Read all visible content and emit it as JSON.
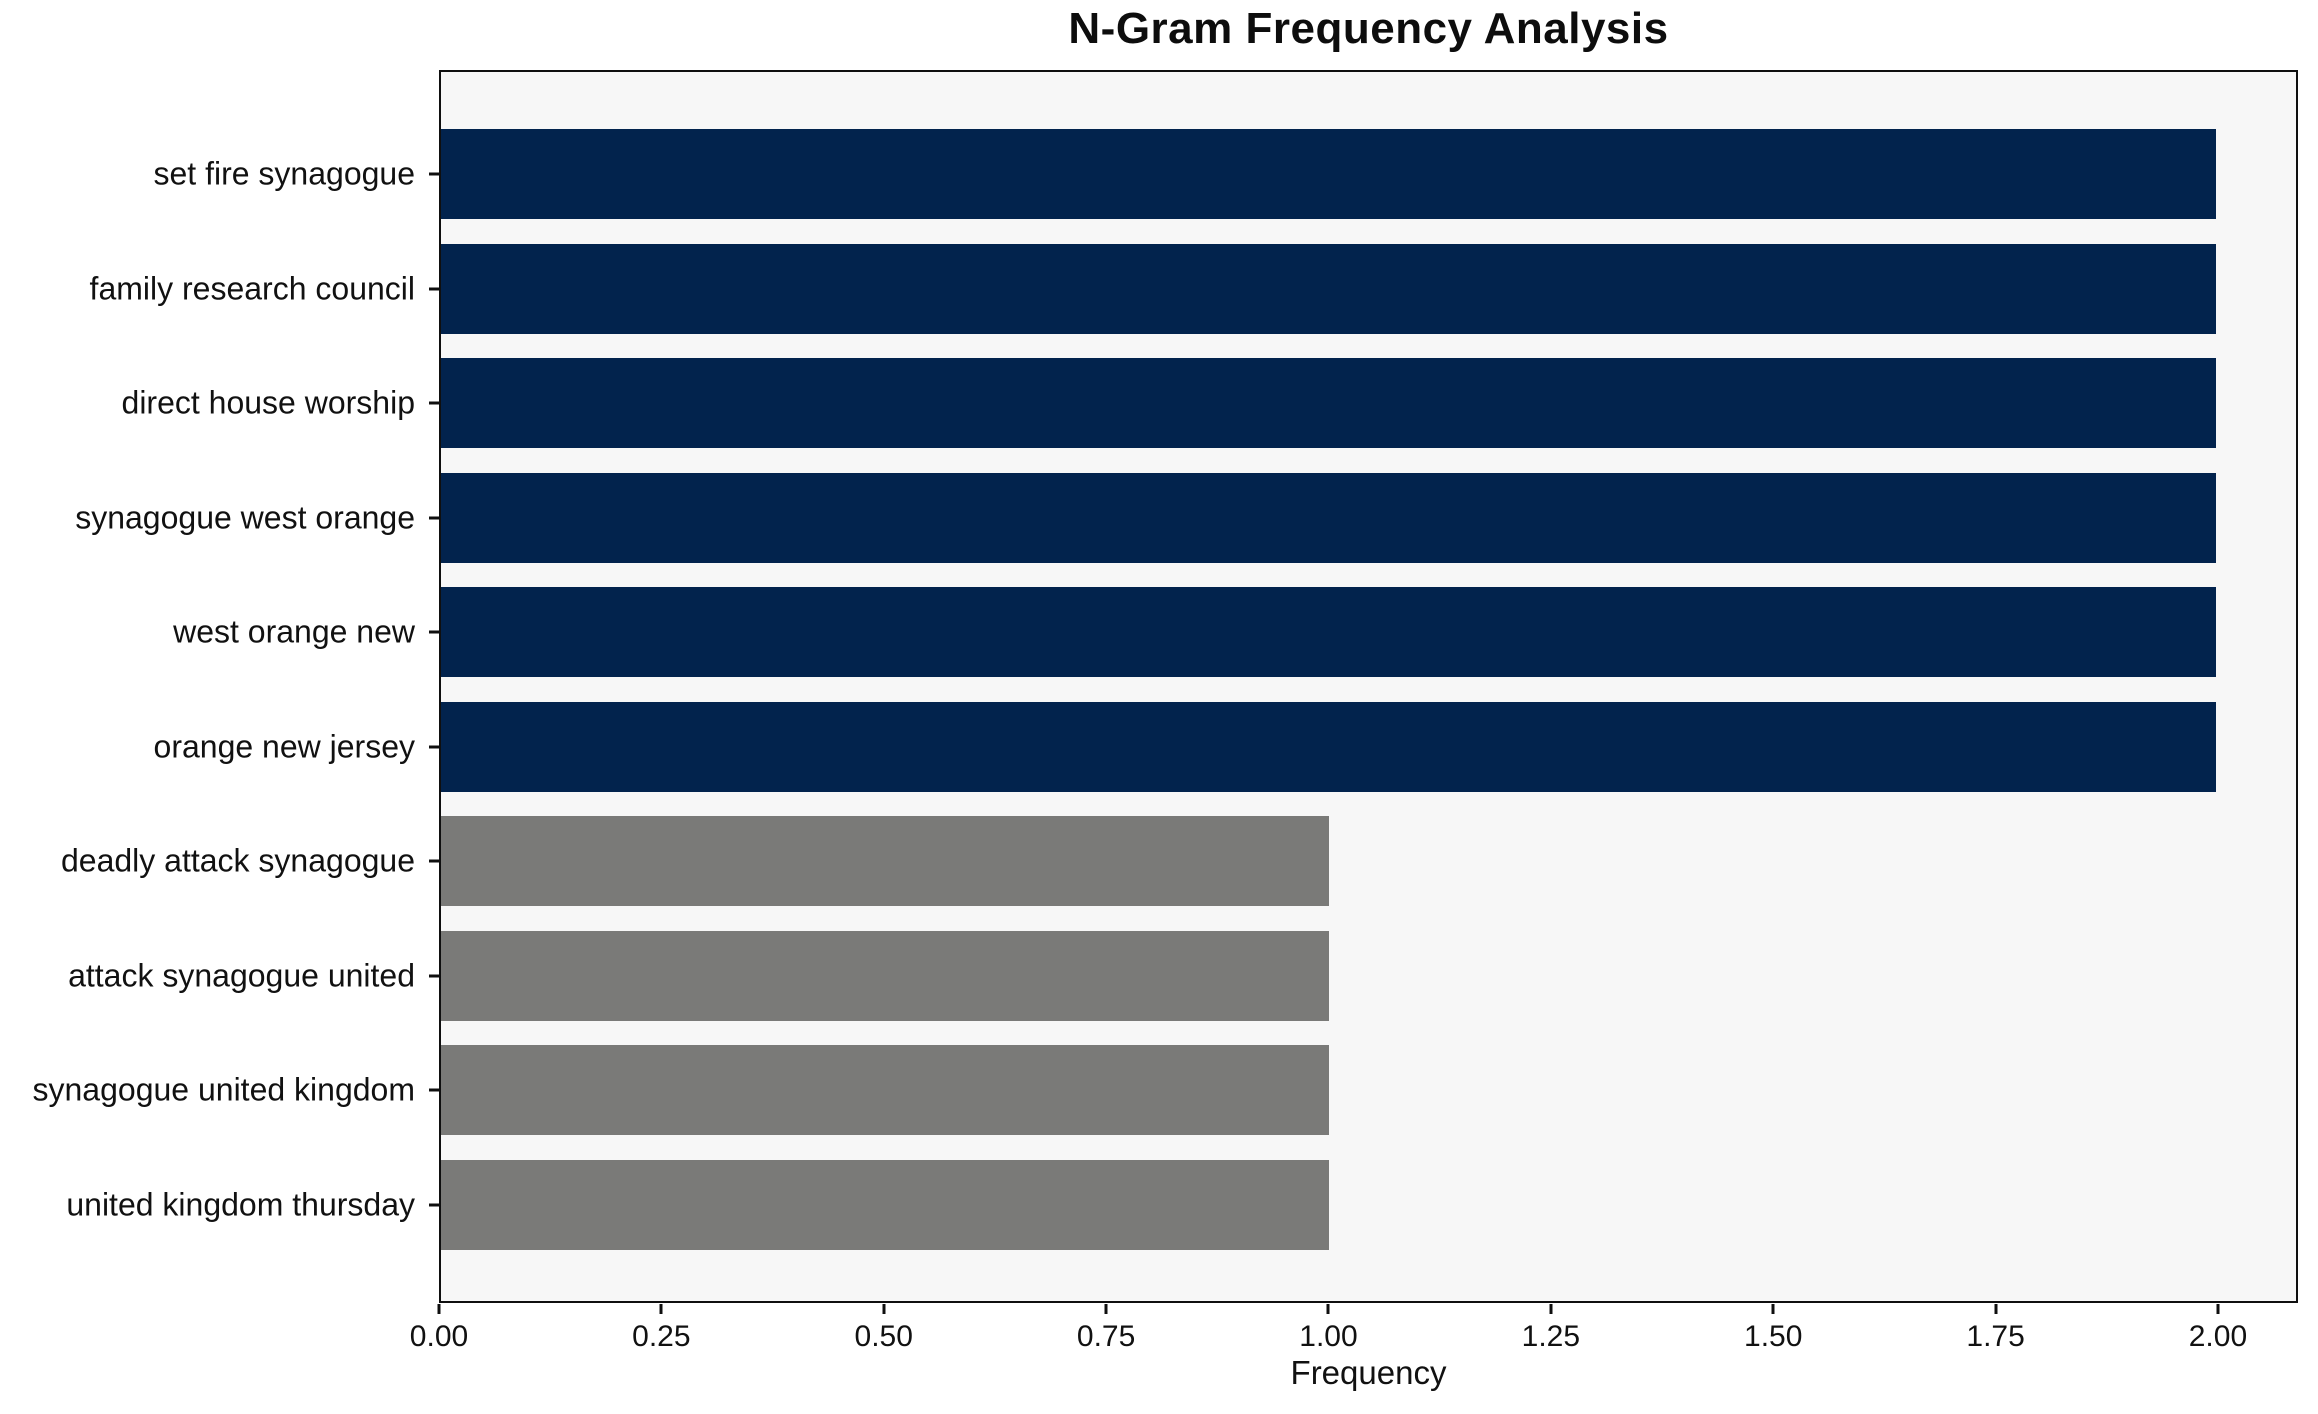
{
  "chart_data": {
    "type": "bar",
    "orientation": "horizontal",
    "title": "N-Gram Frequency Analysis",
    "xlabel": "Frequency",
    "ylabel": "",
    "categories": [
      "set fire synagogue",
      "family research council",
      "direct house worship",
      "synagogue west orange",
      "west orange new",
      "orange new jersey",
      "deadly attack synagogue",
      "attack synagogue united",
      "synagogue united kingdom",
      "united kingdom thursday"
    ],
    "values": [
      2,
      2,
      2,
      2,
      2,
      2,
      1,
      1,
      1,
      1
    ],
    "bar_colors": [
      "#02234d",
      "#02234d",
      "#02234d",
      "#02234d",
      "#02234d",
      "#02234d",
      "#7a7a78",
      "#7a7a78",
      "#7a7a78",
      "#7a7a78"
    ],
    "xlim": [
      0,
      2.09
    ],
    "xticks": [
      0,
      0.25,
      0.5,
      0.75,
      1.0,
      1.25,
      1.5,
      1.75,
      2.0
    ],
    "xtick_labels": [
      "0.00",
      "0.25",
      "0.50",
      "0.75",
      "1.00",
      "1.25",
      "1.50",
      "1.75",
      "2.00"
    ],
    "grid": false,
    "legend": null,
    "colors": {
      "bar_high": "#02234d",
      "bar_low": "#7a7a78",
      "plot_background": "#f7f7f7",
      "figure_background": "#ffffff",
      "spine": "#0f0f0f",
      "text": "#111111"
    }
  }
}
